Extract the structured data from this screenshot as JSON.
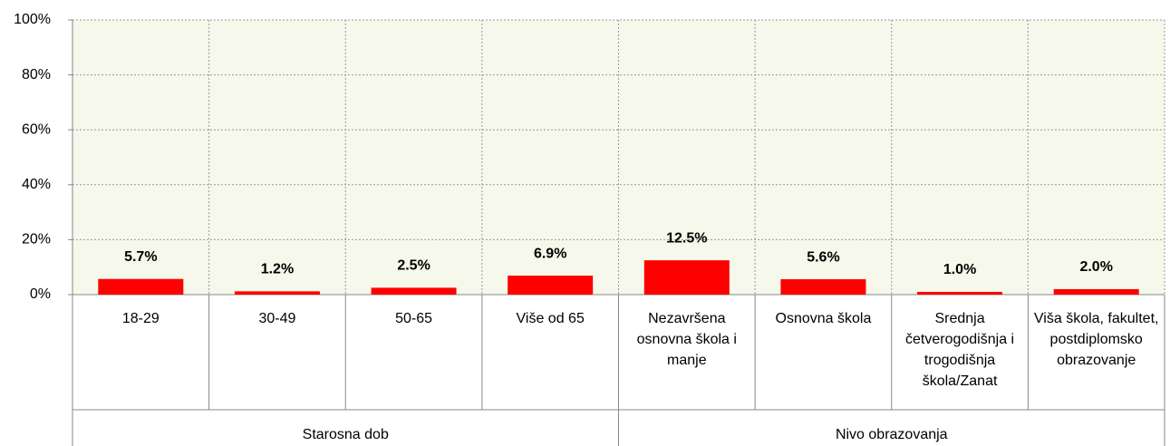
{
  "chart_data": {
    "type": "bar",
    "categories": [
      "18-29",
      "30-49",
      "50-65",
      "Više od 65",
      "Nezavršena osnovna škola i manje",
      "Osnovna škola",
      "Srednja četverogodišnja i trogodišnja škola/Zanat",
      "Viša škola, fakultet, postdiplomsko obrazovanje"
    ],
    "groups": [
      "Starosna dob",
      "Nivo obrazovanja"
    ],
    "values": [
      5.7,
      1.2,
      2.5,
      6.9,
      12.5,
      5.6,
      1.0,
      2.0
    ],
    "value_labels": [
      "5.7%",
      "1.2%",
      "2.5%",
      "6.9%",
      "12.5%",
      "5.6%",
      "1.0%",
      "2.0%"
    ],
    "color": "#ff0000",
    "ylim": [
      0,
      100
    ],
    "yticks": [
      {
        "value": 0,
        "label": "0%"
      },
      {
        "value": 20,
        "label": "20%"
      },
      {
        "value": 40,
        "label": "40%"
      },
      {
        "value": 60,
        "label": "60%"
      },
      {
        "value": 80,
        "label": "80%"
      },
      {
        "value": 100,
        "label": "100%"
      }
    ],
    "grid": true
  }
}
